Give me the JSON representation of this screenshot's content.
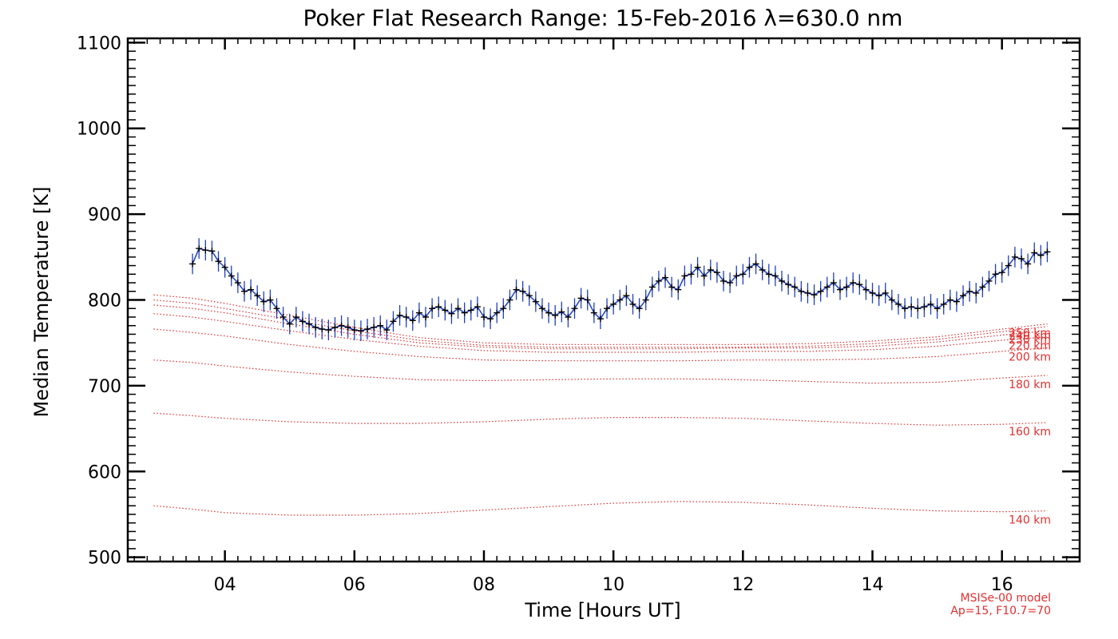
{
  "chart_data": {
    "type": "line",
    "title": "Poker Flat Research Range: 15-Feb-2016 λ=630.0 nm",
    "xlabel": "Time [Hours UT]",
    "ylabel": "Median Temperature [K]",
    "xlim": [
      2.5,
      17.2
    ],
    "ylim": [
      495,
      1105
    ],
    "x_ticks": [
      4,
      6,
      8,
      10,
      12,
      14,
      16
    ],
    "x_tick_labels": [
      "04",
      "06",
      "08",
      "10",
      "12",
      "14",
      "16"
    ],
    "y_ticks": [
      500,
      600,
      700,
      800,
      900,
      1000,
      1100
    ],
    "y_tick_labels": [
      "500",
      "600",
      "700",
      "800",
      "900",
      "1000",
      "1100"
    ],
    "grid": false,
    "colors": {
      "measured_line": "#2040c0",
      "error_bars": "#2040c0",
      "markers": "#000000",
      "model": "#e03030"
    },
    "measured": {
      "error_bar_halfwidth_K": 12,
      "points": [
        [
          3.5,
          842
        ],
        [
          3.6,
          860
        ],
        [
          3.7,
          858
        ],
        [
          3.8,
          857
        ],
        [
          3.9,
          845
        ],
        [
          4.0,
          838
        ],
        [
          4.1,
          828
        ],
        [
          4.2,
          820
        ],
        [
          4.3,
          810
        ],
        [
          4.4,
          812
        ],
        [
          4.5,
          805
        ],
        [
          4.6,
          798
        ],
        [
          4.7,
          800
        ],
        [
          4.8,
          790
        ],
        [
          4.9,
          780
        ],
        [
          5.0,
          772
        ],
        [
          5.1,
          780
        ],
        [
          5.2,
          775
        ],
        [
          5.3,
          772
        ],
        [
          5.4,
          768
        ],
        [
          5.5,
          766
        ],
        [
          5.6,
          765
        ],
        [
          5.7,
          768
        ],
        [
          5.8,
          770
        ],
        [
          5.9,
          768
        ],
        [
          6.0,
          765
        ],
        [
          6.1,
          764
        ],
        [
          6.2,
          766
        ],
        [
          6.3,
          768
        ],
        [
          6.4,
          770
        ],
        [
          6.5,
          765
        ],
        [
          6.6,
          775
        ],
        [
          6.7,
          782
        ],
        [
          6.8,
          780
        ],
        [
          6.9,
          776
        ],
        [
          7.0,
          785
        ],
        [
          7.1,
          780
        ],
        [
          7.2,
          790
        ],
        [
          7.3,
          792
        ],
        [
          7.4,
          788
        ],
        [
          7.5,
          784
        ],
        [
          7.6,
          790
        ],
        [
          7.7,
          785
        ],
        [
          7.8,
          788
        ],
        [
          7.9,
          792
        ],
        [
          8.0,
          780
        ],
        [
          8.1,
          778
        ],
        [
          8.2,
          785
        ],
        [
          8.3,
          790
        ],
        [
          8.4,
          800
        ],
        [
          8.5,
          812
        ],
        [
          8.6,
          810
        ],
        [
          8.7,
          805
        ],
        [
          8.8,
          798
        ],
        [
          8.9,
          790
        ],
        [
          9.0,
          785
        ],
        [
          9.1,
          782
        ],
        [
          9.2,
          786
        ],
        [
          9.3,
          780
        ],
        [
          9.4,
          790
        ],
        [
          9.5,
          802
        ],
        [
          9.6,
          800
        ],
        [
          9.7,
          785
        ],
        [
          9.8,
          778
        ],
        [
          9.9,
          790
        ],
        [
          10.0,
          795
        ],
        [
          10.1,
          800
        ],
        [
          10.2,
          805
        ],
        [
          10.3,
          795
        ],
        [
          10.4,
          790
        ],
        [
          10.5,
          800
        ],
        [
          10.6,
          815
        ],
        [
          10.7,
          822
        ],
        [
          10.8,
          826
        ],
        [
          10.9,
          815
        ],
        [
          11.0,
          812
        ],
        [
          11.1,
          828
        ],
        [
          11.2,
          830
        ],
        [
          11.3,
          838
        ],
        [
          11.4,
          828
        ],
        [
          11.5,
          835
        ],
        [
          11.6,
          832
        ],
        [
          11.7,
          822
        ],
        [
          11.8,
          820
        ],
        [
          11.9,
          828
        ],
        [
          12.0,
          830
        ],
        [
          12.1,
          838
        ],
        [
          12.2,
          842
        ],
        [
          12.3,
          835
        ],
        [
          12.4,
          830
        ],
        [
          12.5,
          828
        ],
        [
          12.6,
          822
        ],
        [
          12.7,
          818
        ],
        [
          12.8,
          815
        ],
        [
          12.9,
          810
        ],
        [
          13.0,
          808
        ],
        [
          13.1,
          806
        ],
        [
          13.2,
          810
        ],
        [
          13.3,
          815
        ],
        [
          13.4,
          820
        ],
        [
          13.5,
          812
        ],
        [
          13.6,
          815
        ],
        [
          13.7,
          820
        ],
        [
          13.8,
          818
        ],
        [
          13.9,
          812
        ],
        [
          14.0,
          808
        ],
        [
          14.1,
          805
        ],
        [
          14.2,
          808
        ],
        [
          14.3,
          800
        ],
        [
          14.4,
          795
        ],
        [
          14.5,
          790
        ],
        [
          14.6,
          792
        ],
        [
          14.7,
          790
        ],
        [
          14.8,
          792
        ],
        [
          14.9,
          795
        ],
        [
          15.0,
          790
        ],
        [
          15.1,
          795
        ],
        [
          15.2,
          800
        ],
        [
          15.3,
          798
        ],
        [
          15.4,
          805
        ],
        [
          15.5,
          810
        ],
        [
          15.6,
          808
        ],
        [
          15.7,
          815
        ],
        [
          15.8,
          822
        ],
        [
          15.9,
          830
        ],
        [
          16.0,
          832
        ],
        [
          16.1,
          840
        ],
        [
          16.2,
          850
        ],
        [
          16.3,
          848
        ],
        [
          16.4,
          842
        ],
        [
          16.5,
          855
        ],
        [
          16.6,
          852
        ],
        [
          16.7,
          856
        ]
      ]
    },
    "model_series": [
      {
        "name": "250 km",
        "x": [
          2.9,
          3.5,
          4.0,
          5.0,
          6.0,
          7.0,
          8.0,
          9.0,
          10.0,
          11.0,
          12.0,
          13.0,
          14.0,
          15.0,
          16.0,
          16.7
        ],
        "values": [
          806,
          802,
          796,
          782,
          768,
          756,
          750,
          748,
          748,
          748,
          748,
          749,
          752,
          757,
          766,
          772
        ]
      },
      {
        "name": "240 km",
        "x": [
          2.9,
          3.5,
          4.0,
          5.0,
          6.0,
          7.0,
          8.0,
          9.0,
          10.0,
          11.0,
          12.0,
          13.0,
          14.0,
          15.0,
          16.0,
          16.7
        ],
        "values": [
          800,
          796,
          790,
          777,
          764,
          753,
          747,
          745,
          745,
          745,
          745,
          746,
          749,
          754,
          763,
          769
        ]
      },
      {
        "name": "230 km",
        "x": [
          2.9,
          3.5,
          4.0,
          5.0,
          6.0,
          7.0,
          8.0,
          9.0,
          10.0,
          11.0,
          12.0,
          13.0,
          14.0,
          15.0,
          16.0,
          16.7
        ],
        "values": [
          794,
          790,
          785,
          772,
          760,
          750,
          745,
          743,
          743,
          743,
          744,
          744,
          746,
          751,
          759,
          764
        ]
      },
      {
        "name": "220 km",
        "x": [
          2.9,
          3.5,
          4.0,
          5.0,
          6.0,
          7.0,
          8.0,
          9.0,
          10.0,
          11.0,
          12.0,
          13.0,
          14.0,
          15.0,
          16.0,
          16.7
        ],
        "values": [
          784,
          780,
          775,
          764,
          754,
          746,
          741,
          739,
          739,
          739,
          740,
          740,
          742,
          746,
          753,
          757
        ]
      },
      {
        "name": "200 km",
        "x": [
          2.9,
          3.5,
          4.0,
          5.0,
          6.0,
          7.0,
          8.0,
          9.0,
          10.0,
          11.0,
          12.0,
          13.0,
          14.0,
          15.0,
          16.0,
          16.7
        ],
        "values": [
          766,
          762,
          758,
          748,
          740,
          734,
          730,
          729,
          729,
          729,
          730,
          730,
          731,
          734,
          740,
          744
        ]
      },
      {
        "name": "180 km",
        "x": [
          2.9,
          3.5,
          4.0,
          5.0,
          6.0,
          7.0,
          8.0,
          9.0,
          10.0,
          11.0,
          12.0,
          13.0,
          14.0,
          15.0,
          16.0,
          16.7
        ],
        "values": [
          730,
          727,
          723,
          716,
          711,
          707,
          706,
          707,
          708,
          708,
          707,
          705,
          703,
          704,
          709,
          712
        ]
      },
      {
        "name": "160 km",
        "x": [
          2.9,
          3.5,
          4.0,
          5.0,
          6.0,
          7.0,
          8.0,
          9.0,
          10.0,
          11.0,
          12.0,
          13.0,
          14.0,
          15.0,
          16.0,
          16.7
        ],
        "values": [
          668,
          665,
          662,
          658,
          656,
          656,
          658,
          661,
          663,
          663,
          662,
          659,
          656,
          654,
          655,
          657
        ]
      },
      {
        "name": "140 km",
        "x": [
          2.9,
          3.5,
          4.0,
          5.0,
          6.0,
          7.0,
          8.0,
          9.0,
          10.0,
          11.0,
          12.0,
          13.0,
          14.0,
          15.0,
          16.0,
          16.7
        ],
        "values": [
          560,
          556,
          552,
          549,
          549,
          551,
          555,
          559,
          563,
          565,
          564,
          561,
          557,
          554,
          553,
          554
        ]
      }
    ],
    "annotations": {
      "model_name": "MSISe-00 model",
      "model_params": "Ap=15, F10.7=70"
    }
  }
}
